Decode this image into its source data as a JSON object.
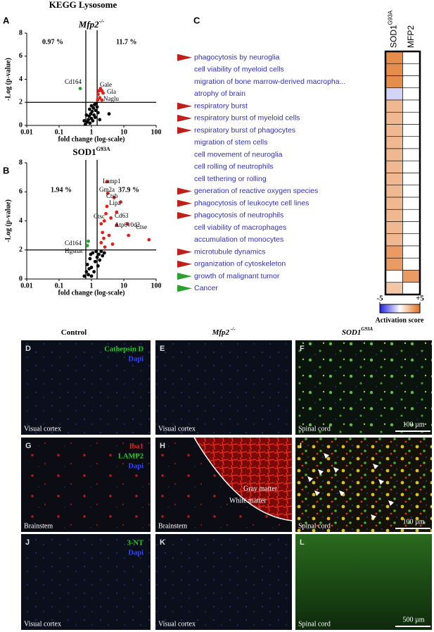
{
  "title": "KEGG Lysosome",
  "chart_data": [
    {
      "type": "scatter",
      "panel": "A",
      "subtitle": {
        "text": "Mfp2",
        "sup": "-/-"
      },
      "xlabel": "fold change (log-scale)",
      "ylabel": "-Log (p-value)",
      "xlog": true,
      "xlim": [
        0.01,
        100
      ],
      "xticks": [
        0.01,
        0.1,
        1,
        10,
        100
      ],
      "ylim": [
        0,
        8
      ],
      "yticks": [
        0,
        2,
        4,
        6,
        8
      ],
      "vlines": [
        0.67,
        1.5
      ],
      "hline": 2,
      "annotations": [
        "0.97 %",
        "11.7 %",
        "Cd164",
        "Gale",
        "Gla",
        "Naglu"
      ],
      "series": [
        {
          "color": "#000000",
          "x": [
            0.75,
            0.8,
            0.85,
            0.9,
            0.95,
            1.0,
            1.05,
            1.1,
            1.15,
            1.2,
            1.25,
            1.3,
            1.35,
            1.4,
            0.7,
            0.65,
            1.5,
            1.6,
            1.8,
            3.5,
            0.6,
            1.0,
            0.88
          ],
          "values": [
            0.3,
            0.5,
            0.8,
            0.2,
            1.0,
            0.6,
            1.2,
            0.4,
            1.5,
            0.9,
            1.8,
            0.7,
            1.3,
            1.9,
            0.9,
            0.1,
            1.6,
            1.1,
            0.5,
            1.0,
            0.4,
            1.7,
            1.4
          ]
        },
        {
          "color": "#e0201b",
          "x": [
            1.9,
            1.7,
            1.6,
            1.8,
            2.1,
            1.55,
            2.3,
            2.1
          ],
          "values": [
            3.2,
            3.0,
            2.7,
            2.4,
            3.0,
            2.2,
            2.8,
            2.2
          ]
        },
        {
          "color": "#2ca02c",
          "x": [
            0.45
          ],
          "values": [
            3.2
          ]
        }
      ]
    },
    {
      "type": "scatter",
      "panel": "B",
      "subtitle": {
        "text": "SOD1",
        "sup": "G93A"
      },
      "xlabel": "fold change (log-scale)",
      "ylabel": "-Log (p-value)",
      "xlog": true,
      "xlim": [
        0.01,
        100
      ],
      "xticks": [
        0.01,
        0.1,
        1,
        10,
        100
      ],
      "ylim": [
        0,
        8
      ],
      "yticks": [
        0,
        2,
        4,
        6,
        8
      ],
      "vlines": [
        0.67,
        1.5
      ],
      "hline": 2,
      "annotations": [
        "1.94 %",
        "37.9 %",
        "Lamp1",
        "Gm2a",
        "Ctsb",
        "Lipa",
        "Ctsc",
        "Cd63",
        "Atp6v0d2",
        "Ctse",
        "Cd164",
        "Hgsnat"
      ],
      "series": [
        {
          "color": "#000000",
          "x": [
            0.6,
            0.7,
            0.75,
            0.8,
            0.9,
            1.0,
            1.1,
            1.2,
            1.3,
            1.4,
            1.5,
            1.6,
            1.7,
            1.8,
            2.0,
            2.2,
            1.0,
            0.85,
            2.5,
            0.95
          ],
          "values": [
            0.2,
            0.5,
            1.0,
            0.3,
            1.4,
            0.8,
            1.8,
            0.5,
            1.2,
            1.9,
            1.5,
            0.9,
            1.7,
            1.3,
            1.9,
            1.6,
            0.2,
            0.7,
            1.8,
            1.7
          ]
        },
        {
          "color": "#e0201b",
          "x": [
            3,
            3.2,
            5,
            8,
            6,
            13,
            14,
            60,
            2,
            2.2,
            2.5,
            2.8,
            3.5,
            4,
            2.4,
            3,
            4.5,
            2,
            6,
            2.6
          ],
          "values": [
            6.7,
            5.9,
            5.6,
            5.3,
            3.7,
            3.8,
            3.0,
            2.7,
            2.5,
            3.2,
            4.0,
            4.5,
            3.0,
            4.2,
            2.8,
            5.0,
            2.4,
            3.8,
            4.6,
            2.2
          ]
        },
        {
          "color": "#2ca02c",
          "x": [
            0.8,
            0.75
          ],
          "values": [
            2.6,
            2.3
          ]
        }
      ]
    },
    {
      "type": "heatmap",
      "panel": "C",
      "columns": [
        {
          "text": "SOD1",
          "sup": "G93A"
        },
        {
          "text": "MFP2"
        }
      ],
      "rows": [
        "phagocytosis by neuroglia",
        "cell viability of myeloid cells",
        "migration of bone marrow-derived macropha...",
        "atrophy of brain",
        "respiratory burst",
        "respiratory burst of myeloid cells",
        "respiratory burst of phagocytes",
        "migration of stem cells",
        "cell movement of neuroglia",
        "cell rolling of neutrophils",
        "cell tethering or rolling",
        "generation of reactive oxygen species",
        "phagocytosis of leukocyte cell lines",
        "phagocytosis of neutrophils",
        "cell viability of macrophages",
        "accumulation of monocytes",
        "microtubule dynamics",
        "organization of cytoskeleton",
        "growth of malignant tumor",
        "Cancer"
      ],
      "row_markers": [
        "#c0201b",
        null,
        null,
        null,
        "#c0201b",
        "#c0201b",
        "#c0201b",
        null,
        null,
        null,
        null,
        "#c0201b",
        "#c0201b",
        "#c0201b",
        null,
        null,
        "#c0201b",
        "#c0201b",
        "#2ca02c",
        "#2ca02c"
      ],
      "values": [
        [
          4,
          0
        ],
        [
          4,
          0
        ],
        [
          4,
          0
        ],
        [
          -1,
          0
        ],
        [
          2.5,
          0
        ],
        [
          2.5,
          0
        ],
        [
          2.5,
          0
        ],
        [
          2.5,
          0
        ],
        [
          2.5,
          0
        ],
        [
          2.5,
          0
        ],
        [
          2.5,
          0
        ],
        [
          2.5,
          0
        ],
        [
          2.5,
          0
        ],
        [
          2.5,
          0
        ],
        [
          2.5,
          0
        ],
        [
          2.5,
          0
        ],
        [
          3.5,
          0
        ],
        [
          3.5,
          0
        ],
        [
          0,
          3.5
        ],
        [
          2,
          0
        ]
      ],
      "colors": {
        "low": "#2222dd",
        "mid": "#ffffff",
        "high": "#e07020"
      },
      "clim": [
        -5,
        5
      ],
      "cticks": [
        -5,
        {
          "value": 5,
          "label": "+5"
        }
      ],
      "colorbar_label": "Activation score"
    }
  ],
  "micrographs": {
    "columns": [
      {
        "text": "Control"
      },
      {
        "text": "Mfp2",
        "sup": " -/-"
      },
      {
        "text": "SOD1",
        "sup": "G93A"
      }
    ],
    "panels": [
      {
        "letter": "D",
        "region": "Visual cortex",
        "stains": [
          {
            "text": "Cathepsin D",
            "color": "#22cc22"
          },
          {
            "text": "Dapi",
            "color": "#3344ff"
          }
        ]
      },
      {
        "letter": "E",
        "region": "Visual cortex"
      },
      {
        "letter": "F",
        "region": "Spinal cord",
        "scale": "100 µm"
      },
      {
        "letter": "G",
        "region": "Brainstem",
        "stains": [
          {
            "text": "Iba1",
            "color": "#ee2222"
          },
          {
            "text": "LAMP2",
            "color": "#22cc22"
          },
          {
            "text": "Dapi",
            "color": "#3344ff"
          }
        ]
      },
      {
        "letter": "H",
        "region": "Brainstem",
        "notes": [
          "Gray matter",
          "White matter"
        ]
      },
      {
        "letter": "I",
        "region": "Spinal cord",
        "scale": "100 µm"
      },
      {
        "letter": "J",
        "region": "Visual cortex",
        "stains": [
          {
            "text": "3-NT",
            "color": "#22cc22"
          },
          {
            "text": "Dapi",
            "color": "#3344ff"
          }
        ]
      },
      {
        "letter": "K",
        "region": "Visual cortex"
      },
      {
        "letter": "L",
        "region": "Spinal cord",
        "scale": "500 µm"
      }
    ]
  }
}
